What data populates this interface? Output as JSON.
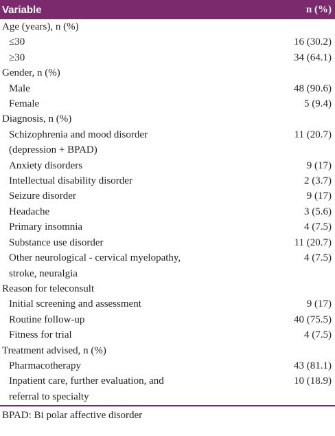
{
  "header": {
    "variable": "Variable",
    "value": "n (%)"
  },
  "groups": [
    {
      "label": "Age (years), n (%)",
      "items": [
        {
          "label": "≤30",
          "value": "16 (30.2)"
        },
        {
          "label": "≥30",
          "value": "34 (64.1)"
        }
      ]
    },
    {
      "label": "Gender, n (%)",
      "items": [
        {
          "label": "Male",
          "value": "48 (90.6)"
        },
        {
          "label": "Female",
          "value": "5 (9.4)"
        }
      ]
    },
    {
      "label": "Diagnosis, n (%)",
      "items": [
        {
          "label": "Schizophrenia and mood disorder (depression + BPAD)",
          "value": "11 (20.7)"
        },
        {
          "label": "Anxiety disorders",
          "value": "9 (17)"
        },
        {
          "label": "Intellectual disability disorder",
          "value": "2 (3.7)"
        },
        {
          "label": "Seizure disorder",
          "value": "9 (17)"
        },
        {
          "label": "Headache",
          "value": "3 (5.6)"
        },
        {
          "label": "Primary insomnia",
          "value": "4 (7.5)"
        },
        {
          "label": "Substance use disorder",
          "value": "11 (20.7)"
        },
        {
          "label": "Other neurological - cervical myelopathy, stroke, neuralgia",
          "value": "4 (7.5)"
        }
      ]
    },
    {
      "label": "Reason for teleconsult",
      "items": [
        {
          "label": "Initial screening and assessment",
          "value": "9 (17)"
        },
        {
          "label": "Routine follow-up",
          "value": "40 (75.5)"
        },
        {
          "label": "Fitness for trial",
          "value": "4 (7.5)"
        }
      ]
    },
    {
      "label": "Treatment advised, n (%)",
      "items": [
        {
          "label": "Pharmacotherapy",
          "value": "43 (81.1)"
        },
        {
          "label": "Inpatient care, further evaluation, and referral to specialty",
          "value": "10 (18.9)"
        }
      ]
    }
  ],
  "footnote": "BPAD: Bi polar affective disorder"
}
